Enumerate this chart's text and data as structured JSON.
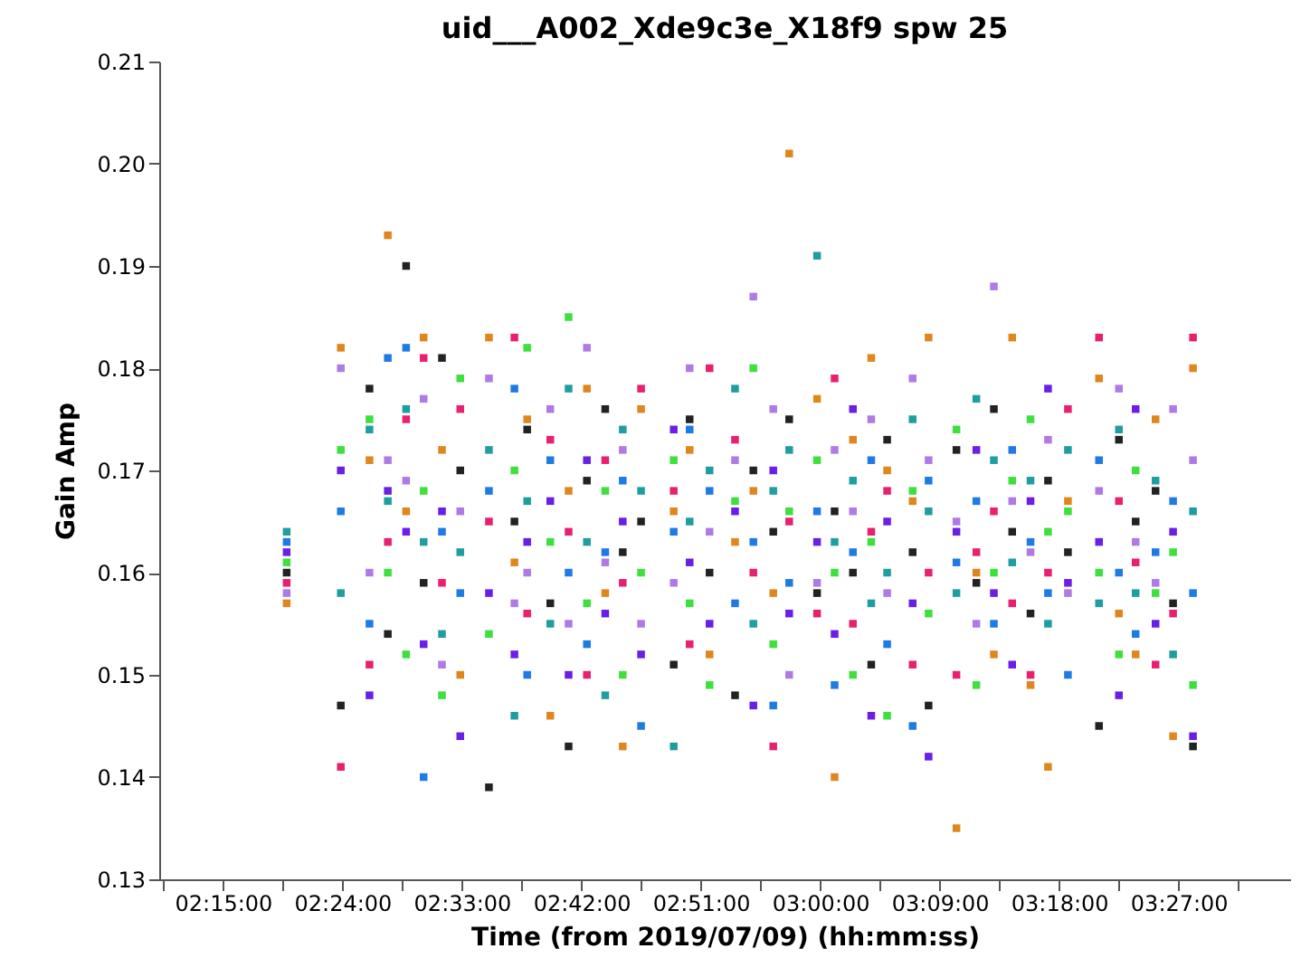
{
  "chart_data": {
    "type": "scatter",
    "title": "uid___A002_Xde9c3e_X18f9 spw 25",
    "xlabel": "Time (from 2019/07/09) (hh:mm:ss)",
    "ylabel": "Gain Amp",
    "marker": "square",
    "grid": false,
    "legend": false,
    "x": [
      2.33,
      2.398,
      2.434,
      2.457,
      2.48,
      2.502,
      2.525,
      2.548,
      2.584,
      2.616,
      2.632,
      2.661,
      2.684,
      2.707,
      2.73,
      2.752,
      2.775,
      2.816,
      2.836,
      2.861,
      2.893,
      2.916,
      2.941,
      2.961,
      2.996,
      3.018,
      3.041,
      3.064,
      3.084,
      3.116,
      3.136,
      3.171,
      3.196,
      3.218,
      3.241,
      3.264,
      3.286,
      3.311,
      3.35,
      3.375,
      3.396,
      3.421,
      3.443,
      3.468
    ],
    "xlim": [
      2.17,
      3.59
    ],
    "xticks": [
      {
        "value": 2.175,
        "label": null
      },
      {
        "value": 2.25,
        "label": "02:15:00"
      },
      {
        "value": 2.325,
        "label": null
      },
      {
        "value": 2.4,
        "label": "02:24:00"
      },
      {
        "value": 2.475,
        "label": null
      },
      {
        "value": 2.55,
        "label": "02:33:00"
      },
      {
        "value": 2.625,
        "label": null
      },
      {
        "value": 2.7,
        "label": "02:42:00"
      },
      {
        "value": 2.775,
        "label": null
      },
      {
        "value": 2.85,
        "label": "02:51:00"
      },
      {
        "value": 2.925,
        "label": null
      },
      {
        "value": 3.0,
        "label": "03:00:00"
      },
      {
        "value": 3.075,
        "label": null
      },
      {
        "value": 3.15,
        "label": "03:09:00"
      },
      {
        "value": 3.225,
        "label": null
      },
      {
        "value": 3.3,
        "label": "03:18:00"
      },
      {
        "value": 3.375,
        "label": null
      },
      {
        "value": 3.45,
        "label": "03:27:00"
      },
      {
        "value": 3.525,
        "label": null
      }
    ],
    "ylim": [
      0.13,
      0.21
    ],
    "yticks": [
      0.13,
      0.14,
      0.15,
      0.16,
      0.17,
      0.18,
      0.19,
      {
        "value": 0.2,
        "label": "0.20"
      },
      0.21
    ],
    "series": [
      {
        "color": "#e0861e",
        "values": [
          0.157,
          0.182,
          0.171,
          0.193,
          0.166,
          0.183,
          0.172,
          0.15,
          0.183,
          0.161,
          0.175,
          0.146,
          0.168,
          0.178,
          0.158,
          0.143,
          0.176,
          0.166,
          0.172,
          0.152,
          0.163,
          0.168,
          0.158,
          0.201,
          0.177,
          0.14,
          0.173,
          0.181,
          0.17,
          0.167,
          0.183,
          0.135,
          0.16,
          0.152,
          0.183,
          0.149,
          0.141,
          0.167,
          0.179,
          0.156,
          0.152,
          0.175,
          0.144,
          0.18
        ]
      },
      {
        "color": "#222222",
        "values": [
          0.16,
          0.147,
          0.178,
          0.154,
          0.19,
          0.159,
          0.181,
          0.17,
          0.139,
          0.165,
          0.174,
          0.157,
          0.143,
          0.169,
          0.176,
          0.162,
          0.165,
          0.151,
          0.175,
          0.16,
          0.148,
          0.17,
          0.164,
          0.175,
          0.158,
          0.166,
          0.16,
          0.151,
          0.173,
          0.162,
          0.147,
          0.172,
          0.159,
          0.176,
          0.164,
          0.156,
          0.169,
          0.162,
          0.145,
          0.173,
          0.165,
          0.168,
          0.157,
          0.143
        ]
      },
      {
        "color": "#1e7be6",
        "values": [
          0.163,
          0.166,
          0.155,
          0.181,
          0.182,
          0.14,
          0.164,
          0.158,
          0.168,
          0.178,
          0.15,
          0.171,
          0.16,
          0.153,
          0.162,
          0.169,
          0.145,
          0.164,
          0.174,
          0.168,
          0.157,
          0.163,
          0.147,
          0.159,
          0.166,
          0.149,
          0.162,
          0.171,
          0.153,
          0.145,
          0.169,
          0.161,
          0.167,
          0.155,
          0.172,
          0.163,
          0.158,
          0.15,
          0.171,
          0.16,
          0.154,
          0.162,
          0.167,
          0.158
        ]
      },
      {
        "color": "#3de03d",
        "values": [
          0.161,
          0.172,
          0.175,
          0.16,
          0.152,
          0.168,
          0.148,
          0.179,
          0.154,
          0.17,
          0.182,
          0.163,
          0.185,
          0.157,
          0.168,
          0.15,
          0.16,
          0.171,
          0.157,
          0.149,
          0.167,
          0.18,
          0.153,
          0.166,
          0.171,
          0.16,
          0.15,
          0.163,
          0.146,
          0.168,
          0.156,
          0.174,
          0.149,
          0.16,
          0.169,
          0.175,
          0.164,
          0.166,
          0.16,
          0.152,
          0.17,
          0.158,
          0.162,
          0.149
        ]
      },
      {
        "color": "#6a1ee6",
        "values": [
          0.162,
          0.17,
          0.148,
          0.168,
          0.164,
          0.153,
          0.166,
          0.144,
          0.158,
          0.152,
          0.163,
          0.167,
          0.15,
          0.171,
          0.156,
          0.165,
          0.152,
          0.174,
          0.161,
          0.155,
          0.166,
          0.147,
          0.17,
          0.156,
          0.163,
          0.154,
          0.176,
          0.146,
          0.165,
          0.157,
          0.142,
          0.164,
          0.172,
          0.158,
          0.151,
          0.167,
          0.178,
          0.159,
          0.163,
          0.148,
          0.176,
          0.155,
          0.164,
          0.144
        ]
      },
      {
        "color": "#e8206e",
        "values": [
          0.159,
          0.141,
          0.151,
          0.163,
          0.175,
          0.181,
          0.159,
          0.176,
          0.165,
          0.183,
          0.156,
          0.173,
          0.164,
          0.15,
          0.171,
          0.159,
          0.178,
          0.168,
          0.153,
          0.18,
          0.173,
          0.16,
          0.143,
          0.165,
          0.156,
          0.179,
          0.155,
          0.164,
          0.168,
          0.151,
          0.16,
          0.15,
          0.162,
          0.166,
          0.157,
          0.15,
          0.16,
          0.176,
          0.183,
          0.167,
          0.161,
          0.151,
          0.156,
          0.183
        ]
      },
      {
        "color": "#1e9ea0",
        "values": [
          0.164,
          0.158,
          0.174,
          0.167,
          0.176,
          0.163,
          0.154,
          0.162,
          0.172,
          0.146,
          0.167,
          0.155,
          0.178,
          0.163,
          0.148,
          0.174,
          0.168,
          0.143,
          0.165,
          0.17,
          0.178,
          0.155,
          0.168,
          0.172,
          0.191,
          0.163,
          0.169,
          0.157,
          0.16,
          0.175,
          0.166,
          0.158,
          0.177,
          0.171,
          0.161,
          0.169,
          0.155,
          0.172,
          0.157,
          0.174,
          0.158,
          0.169,
          0.152,
          0.166
        ]
      },
      {
        "color": "#b07ae6",
        "values": [
          0.158,
          0.18,
          0.16,
          0.171,
          0.169,
          0.177,
          0.151,
          0.166,
          0.179,
          0.157,
          0.16,
          0.176,
          0.155,
          0.182,
          0.161,
          0.172,
          0.155,
          0.159,
          0.18,
          0.164,
          0.171,
          0.187,
          0.176,
          0.15,
          0.159,
          0.172,
          0.166,
          0.175,
          0.158,
          0.179,
          0.171,
          0.165,
          0.155,
          0.188,
          0.167,
          0.162,
          0.173,
          0.158,
          0.168,
          0.178,
          0.163,
          0.159,
          0.176,
          0.171
        ]
      }
    ]
  }
}
